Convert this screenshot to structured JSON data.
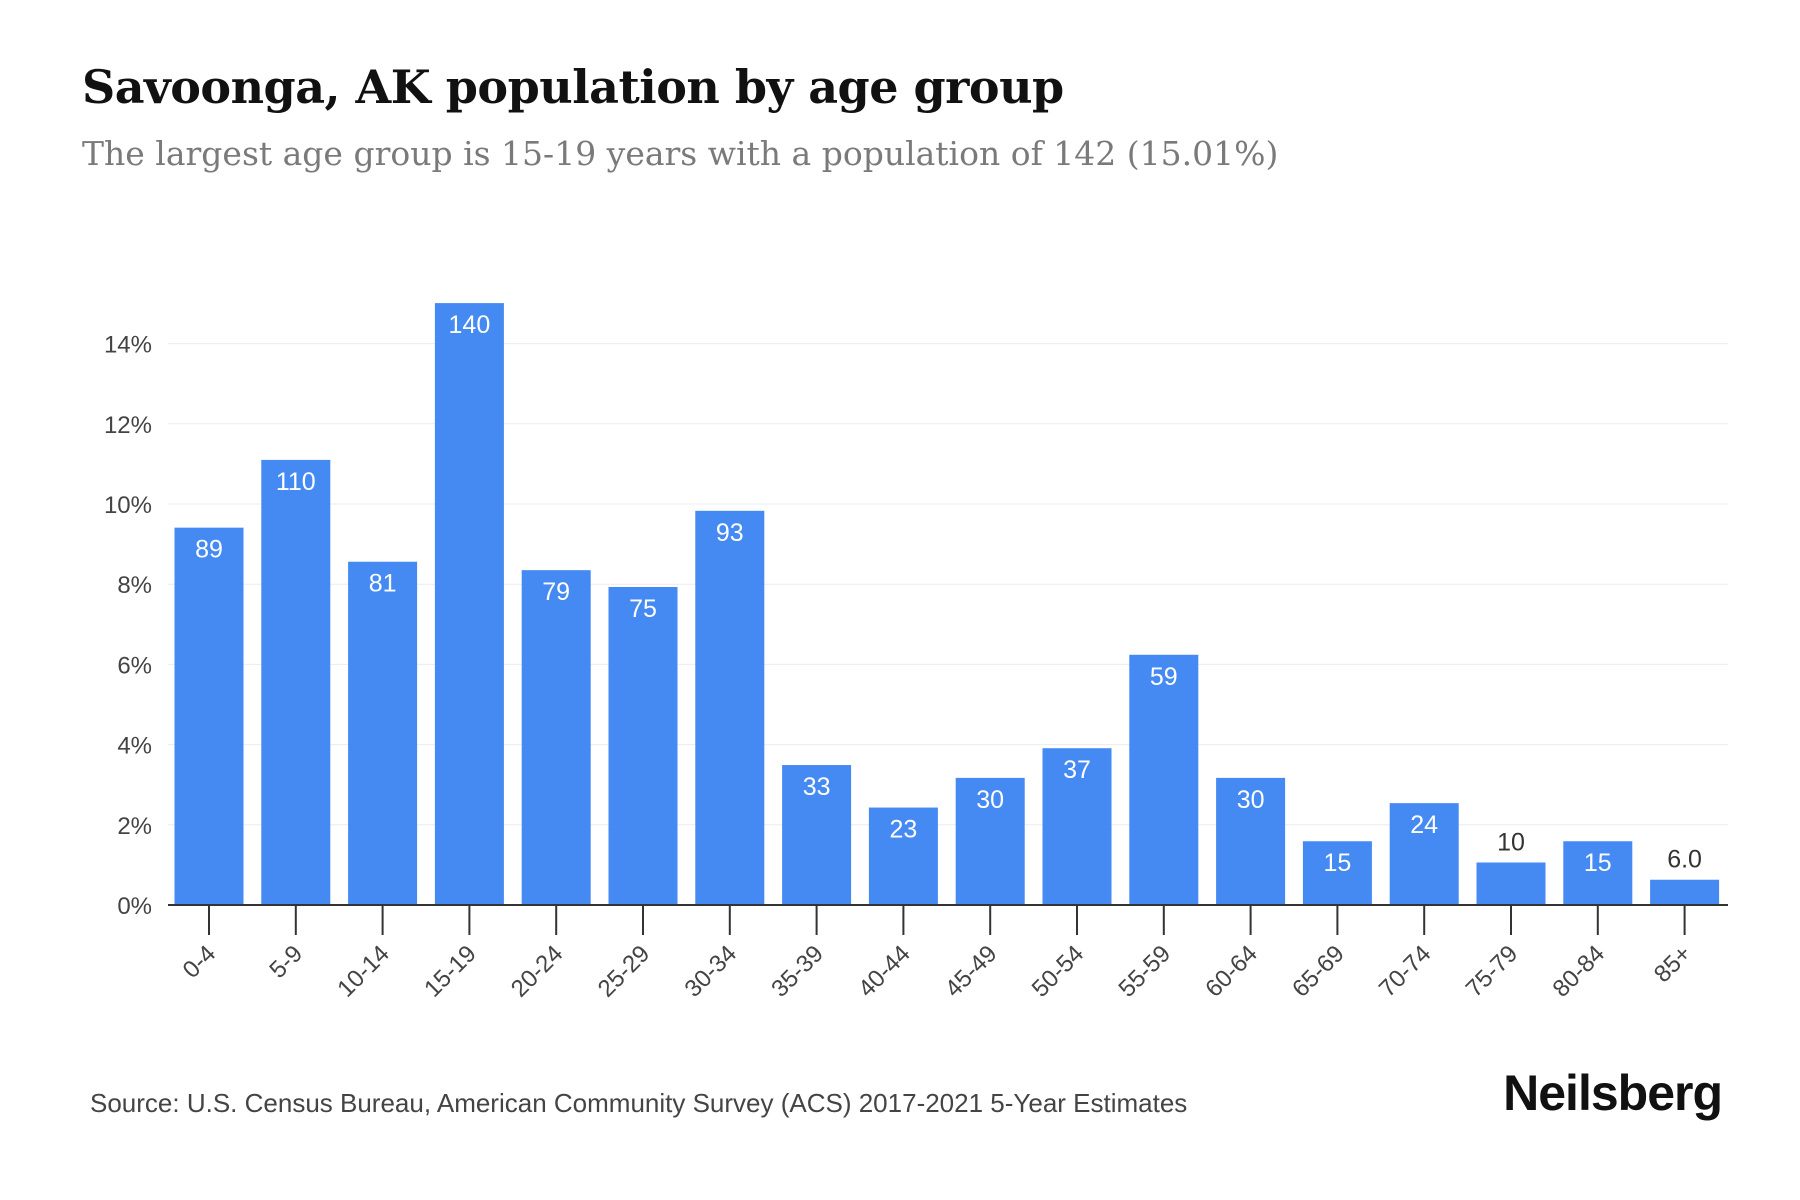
{
  "title": "Savoonga, AK population by age group",
  "subtitle": "The largest age group is 15-19 years with a population of 142 (15.01%)",
  "source": "Source: U.S. Census Bureau, American Community Survey (ACS) 2017-2021 5-Year Estimates",
  "brand": "Neilsberg",
  "colors": {
    "bar": "#4589f3",
    "bar_label_inside": "#ffffff",
    "bar_label_outside": "#333333",
    "grid": "#ececec",
    "axis": "#333333"
  },
  "chart_data": {
    "type": "bar",
    "categories": [
      "0-4",
      "5-9",
      "10-14",
      "15-19",
      "20-24",
      "25-29",
      "30-34",
      "35-39",
      "40-44",
      "45-49",
      "50-54",
      "55-59",
      "60-64",
      "65-69",
      "70-74",
      "75-79",
      "80-84",
      "85+"
    ],
    "values": [
      9.41,
      11.1,
      8.56,
      15.01,
      8.35,
      7.93,
      9.83,
      3.49,
      2.43,
      3.17,
      3.91,
      6.24,
      3.17,
      1.59,
      2.54,
      1.06,
      1.59,
      0.63
    ],
    "data_labels": [
      "89",
      "110",
      "81",
      "140",
      "79",
      "75",
      "93",
      "33",
      "23",
      "30",
      "37",
      "59",
      "30",
      "15",
      "24",
      "10",
      "15",
      "6.0"
    ],
    "y_ticks": [
      "0%",
      "2%",
      "4%",
      "6%",
      "8%",
      "10%",
      "12%",
      "14%"
    ],
    "ylim": [
      0,
      15.2
    ],
    "grid": true
  }
}
